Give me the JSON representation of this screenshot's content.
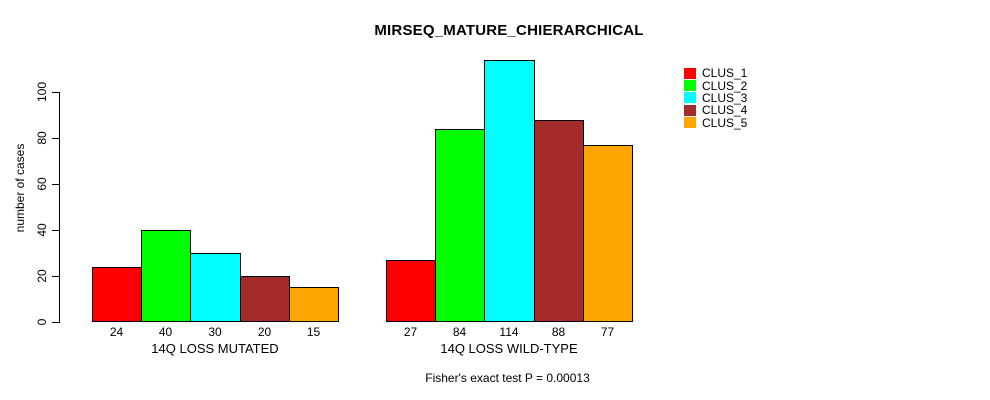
{
  "title": "MIRSEQ_MATURE_CHIERARCHICAL",
  "caption": "Fisher's exact test P = 0.00013",
  "chart_data": {
    "type": "bar",
    "title": "MIRSEQ_MATURE_CHIERARCHICAL",
    "xlabel": "",
    "ylabel": "number of cases",
    "ylim": [
      0,
      115
    ],
    "yticks": [
      0,
      20,
      40,
      60,
      80,
      100
    ],
    "grid": false,
    "legend_position": "top-right-outside-plot",
    "bar_value_labels": true,
    "categories": [
      "14Q LOSS MUTATED",
      "14Q LOSS WILD-TYPE"
    ],
    "groups": [
      {
        "label": "14Q LOSS MUTATED",
        "values": [
          24,
          40,
          30,
          20,
          15
        ]
      },
      {
        "label": "14Q LOSS WILD-TYPE",
        "values": [
          27,
          84,
          114,
          88,
          77
        ]
      }
    ],
    "series": [
      {
        "name": "CLUS_1",
        "color": "#FF0000",
        "values": [
          24,
          27
        ]
      },
      {
        "name": "CLUS_2",
        "color": "#00FF00",
        "values": [
          40,
          84
        ]
      },
      {
        "name": "CLUS_3",
        "color": "#00FFFF",
        "values": [
          30,
          114
        ]
      },
      {
        "name": "CLUS_4",
        "color": "#A52A2A",
        "values": [
          20,
          88
        ]
      },
      {
        "name": "CLUS_5",
        "color": "#FFA500",
        "values": [
          15,
          77
        ]
      }
    ],
    "annotation": "Fisher's exact test P = 0.00013"
  }
}
